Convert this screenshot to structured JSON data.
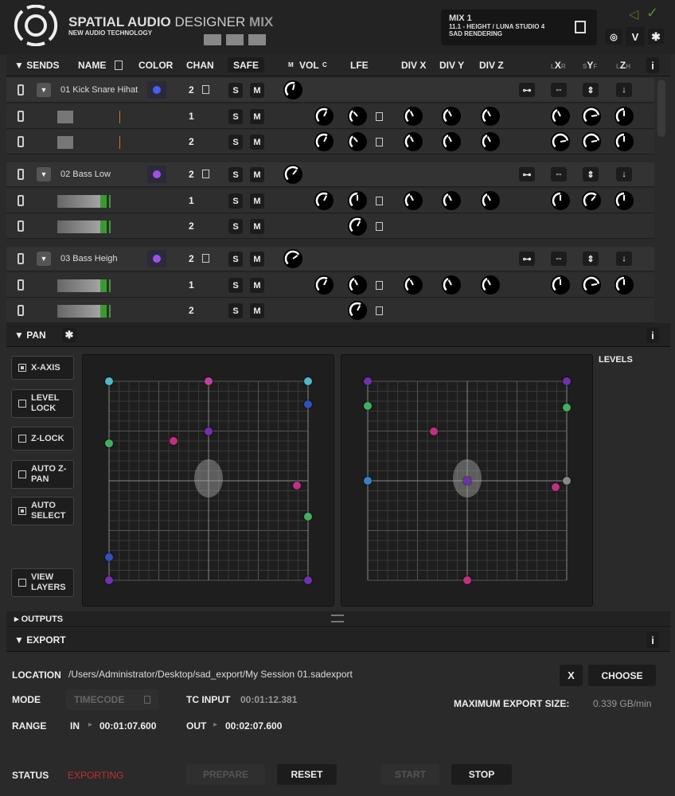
{
  "header": {
    "brand_bold": "SPATIAL AUDIO",
    "brand_light": "DESIGNER",
    "brand_mix": "MIX",
    "tagline": "NEW AUDIO TECHNOLOGY",
    "mix_title": "MIX 1",
    "mix_format": "11.1 - HEIGHT / LUNA STUDIO 4",
    "mix_mode": "SAD RENDERING",
    "v_label": "V"
  },
  "sends": {
    "title": "SENDS",
    "cols": {
      "name": "NAME",
      "color": "COLOR",
      "chan": "CHAN",
      "safe": "SAFE",
      "m": "M",
      "vol": "VOL",
      "c": "C",
      "lfe": "LFE",
      "divx": "DIV X",
      "divy": "DIV Y",
      "divz": "DIV Z",
      "lx_l": "L",
      "lx": "X",
      "lx_r": "R",
      "sy_s": "S",
      "sy": "Y",
      "sy_f": "F",
      "lz_l": "L",
      "lz": "Z",
      "lz_h": "H"
    },
    "info": "i",
    "s": "S",
    "m": "M",
    "tracks": [
      {
        "name": "01 Kick Snare Hihat",
        "color": "#4b5cf0",
        "chan": "2",
        "vol": 0.55,
        "children": [
          {
            "chan": "1",
            "meter": 0.2,
            "vol": 0.6,
            "lfe": 0.35,
            "divx": 0.4,
            "divy": 0.4,
            "divz": 0.4,
            "lx": 0.4,
            "sy": 0.8,
            "lz": 0.5,
            "full": true
          },
          {
            "chan": "2",
            "meter": 0.2,
            "vol": 0.6,
            "lfe": 0.35,
            "divx": 0.4,
            "divy": 0.4,
            "divz": 0.4,
            "lx": 0.8,
            "sy": 0.8,
            "lz": 0.5,
            "full": true
          }
        ]
      },
      {
        "name": "02 Bass Low",
        "color": "#a050e8",
        "chan": "2",
        "vol": 0.65,
        "children": [
          {
            "chan": "1",
            "meter": 0.95,
            "vol": 0.6,
            "lfe": 0.5,
            "divx": 0.4,
            "divy": 0.4,
            "divz": 0.4,
            "lx": 0.5,
            "sy": 0.65,
            "lz": 0.5,
            "full": true
          },
          {
            "chan": "2",
            "meter": 0.95,
            "vol": null,
            "lfe": 0.6,
            "full": false
          }
        ]
      },
      {
        "name": "03 Bass Heigh",
        "color": "#a050e8",
        "chan": "2",
        "vol": 0.7,
        "children": [
          {
            "chan": "1",
            "meter": 0.95,
            "vol": 0.6,
            "lfe": 0.4,
            "divx": 0.4,
            "divy": 0.4,
            "divz": 0.4,
            "lx": 0.5,
            "sy": 0.8,
            "lz": 0.5,
            "full": true
          },
          {
            "chan": "2",
            "meter": 0.95,
            "vol": null,
            "lfe": 0.6,
            "full": false
          }
        ]
      }
    ]
  },
  "pan": {
    "title": "PAN",
    "info": "i",
    "levels": "LEVELS",
    "options": [
      {
        "label": "X-AXIS",
        "on": true
      },
      {
        "label": "LEVEL LOCK",
        "on": false
      },
      {
        "label": "Z-LOCK",
        "on": false
      },
      {
        "label": "AUTO Z-PAN",
        "on": false
      },
      {
        "label": "AUTO SELECT",
        "on": true
      },
      {
        "label": "VIEW LAYERS",
        "on": false
      }
    ],
    "left_sources": [
      {
        "x": -100,
        "y": 100,
        "c": "#4fb8c8"
      },
      {
        "x": 0,
        "y": 100,
        "c": "#c040a0"
      },
      {
        "x": 100,
        "y": 100,
        "c": "#4fb8c8"
      },
      {
        "x": 100,
        "y": 77,
        "c": "#3050c0"
      },
      {
        "x": -100,
        "y": 38,
        "c": "#40b060"
      },
      {
        "x": -35,
        "y": 40,
        "c": "#c03080"
      },
      {
        "x": 0,
        "y": 50,
        "c": "#7030b0"
      },
      {
        "x": 89,
        "y": -5,
        "c": "#c03080"
      },
      {
        "x": 100,
        "y": -36,
        "c": "#40b060"
      },
      {
        "x": -100,
        "y": -77,
        "c": "#3050c0"
      },
      {
        "x": -100,
        "y": -100,
        "c": "#7030b0"
      },
      {
        "x": 100,
        "y": -100,
        "c": "#7030b0"
      }
    ],
    "right_sources": [
      {
        "x": -100,
        "y": 100,
        "c": "#7030b0"
      },
      {
        "x": 100,
        "y": 100,
        "c": "#7030b0"
      },
      {
        "x": -100,
        "y": 75,
        "c": "#40b060"
      },
      {
        "x": 100,
        "y": 74,
        "c": "#40b060"
      },
      {
        "x": -34,
        "y": 50,
        "c": "#c03080"
      },
      {
        "x": -100,
        "y": 0,
        "c": "#3a80c8"
      },
      {
        "x": 0,
        "y": 0,
        "c": "#7030b0"
      },
      {
        "x": 100,
        "y": 0,
        "c": "#888888"
      },
      {
        "x": 89,
        "y": -6,
        "c": "#c03080"
      },
      {
        "x": 0,
        "y": -100,
        "c": "#c03080"
      }
    ]
  },
  "outputs": {
    "title": "OUTPUTS"
  },
  "export": {
    "title": "EXPORT",
    "info": "i",
    "location_label": "LOCATION",
    "location": "/Users/Administrator/Desktop/sad_export/My Session 01.sadexport",
    "clear": "X",
    "choose": "CHOOSE",
    "mode_label": "MODE",
    "mode": "TIMECODE",
    "tc_label": "TC INPUT",
    "tc": "00:01:12.381",
    "max_label": "MAXIMUM EXPORT SIZE:",
    "max": "0.339 GB/min",
    "range_label": "RANGE",
    "in_label": "IN",
    "in": "00:01:07.600",
    "out_label": "OUT",
    "out": "00:02:07.600",
    "status_label": "STATUS",
    "status": "EXPORTING",
    "status_color": "#c03030",
    "prepare": "PREPARE",
    "reset": "RESET",
    "start": "START",
    "stop": "STOP"
  }
}
